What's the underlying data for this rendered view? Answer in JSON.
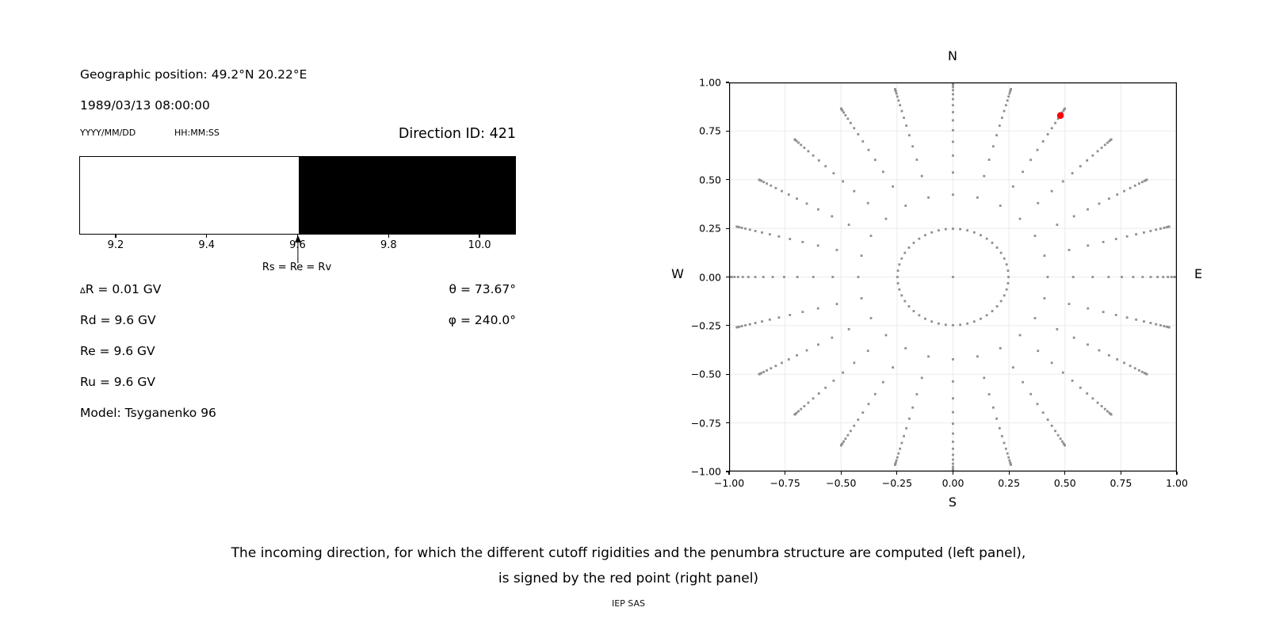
{
  "left_panel": {
    "position_label": "Geographic position: 49.2°N 20.22°E",
    "datetime": "1989/03/13 08:00:00",
    "date_format_label": "YYYY/MM/DD",
    "time_format_label": "HH:MM:SS",
    "direction_id_label": "Direction ID: 421",
    "arrow_label": "Rs = Re = Rv",
    "delta_r_symbol": "∆",
    "delta_r_text": "R = 0.01 GV",
    "rd": "Rd = 9.6 GV",
    "re": "Re = 9.6 GV",
    "ru": "Ru = 9.6 GV",
    "model": "Model: Tsyganenko 96",
    "theta": "θ = 73.67°",
    "phi": "φ = 240.0°"
  },
  "compass": {
    "top": "N",
    "bottom": "S",
    "left": "W",
    "right": "E"
  },
  "caption": {
    "line1": "The incoming direction, for which the different cutoff rigidities and the penumbra structure are computed (left panel),",
    "line2": "is signed by the red point (right panel)",
    "credit": "IEP SAS"
  },
  "chart_data": [
    {
      "type": "bar",
      "name": "penumbra-structure",
      "xlim": [
        9.12,
        10.08
      ],
      "xticks": [
        {
          "v": 9.2,
          "label": "9.2"
        },
        {
          "v": 9.4,
          "label": "9.4"
        },
        {
          "v": 9.6,
          "label": "9.6"
        },
        {
          "v": 9.8,
          "label": "9.8"
        },
        {
          "v": 10.0,
          "label": "10.0"
        }
      ],
      "segments": [
        {
          "from": 9.12,
          "to": 9.6,
          "color": "#ffffff"
        },
        {
          "from": 9.6,
          "to": 10.08,
          "color": "#000000"
        }
      ],
      "marker": {
        "x": 9.6,
        "label": "Rs = Re = Rv"
      }
    },
    {
      "type": "scatter",
      "name": "incoming-direction-map",
      "xlim": [
        -1,
        1
      ],
      "ylim": [
        -1,
        1
      ],
      "grid": true,
      "grid_color": "#ebebeb",
      "xticks": [
        {
          "v": -1.0,
          "label": "−1.00"
        },
        {
          "v": -0.75,
          "label": "−0.75"
        },
        {
          "v": -0.5,
          "label": "−0.50"
        },
        {
          "v": -0.25,
          "label": "−0.25"
        },
        {
          "v": 0.0,
          "label": "0.00"
        },
        {
          "v": 0.25,
          "label": "0.25"
        },
        {
          "v": 0.5,
          "label": "0.50"
        },
        {
          "v": 0.75,
          "label": "0.75"
        },
        {
          "v": 1.0,
          "label": "1.00"
        }
      ],
      "yticks": [
        {
          "v": 1.0,
          "label": "1.00"
        },
        {
          "v": 0.75,
          "label": "0.75"
        },
        {
          "v": 0.5,
          "label": "0.50"
        },
        {
          "v": 0.25,
          "label": "0.25"
        },
        {
          "v": 0.0,
          "label": "0.00"
        },
        {
          "v": -0.25,
          "label": "−0.25"
        },
        {
          "v": -0.5,
          "label": "−0.50"
        },
        {
          "v": -0.75,
          "label": "−0.75"
        },
        {
          "v": -1.0,
          "label": "−1.00"
        }
      ],
      "dot_color": "#8f8f8f",
      "dot_size": 2.8,
      "direction_grid": {
        "center_dot": true,
        "ring": {
          "radius": 0.248,
          "count": 48
        },
        "rays": {
          "azimuth_start_deg": 0,
          "azimuth_step_deg": 15,
          "count": 24,
          "radii": [
            0.423,
            0.537,
            0.624,
            0.695,
            0.754,
            0.805,
            0.847,
            0.883,
            0.914,
            0.939,
            0.96,
            0.976,
            0.988,
            0.996,
            0.9995
          ]
        }
      },
      "red_point": {
        "x": 0.48,
        "y": 0.83,
        "color": "#ff0000",
        "radius_px": 4.3
      }
    }
  ]
}
